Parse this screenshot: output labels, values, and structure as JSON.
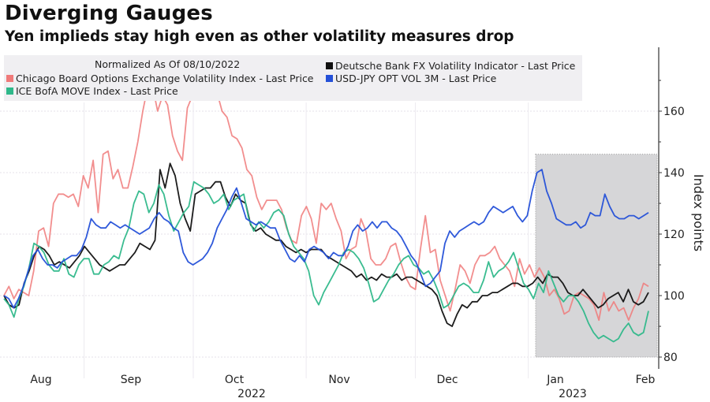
{
  "header": {
    "title": "Diverging Gauges",
    "subtitle": "Yen implieds stay high even as other volatility measures drop"
  },
  "legend": {
    "title": "Normalized As Of 08/10/2022",
    "items": [
      {
        "label": "Chicago Board Options Exchange Volatility Index - Last Price",
        "color": "#f07a7a"
      },
      {
        "label": "Deutsche Bank FX Volatility Indicator - Last Price",
        "color": "#111111"
      },
      {
        "label": "ICE BofA MOVE Index - Last Price",
        "color": "#2fb88a"
      },
      {
        "label": "USD-JPY OPT VOL 3M - Last Price",
        "color": "#2450d8"
      }
    ]
  },
  "chart_data": {
    "type": "line",
    "title": "Diverging Gauges",
    "subtitle": "Yen implieds stay high even as other volatility measures drop",
    "xlabel": "",
    "ylabel": "Index points",
    "ylim": [
      78,
      178
    ],
    "yticks": [
      80,
      100,
      120,
      140,
      160
    ],
    "xlim": [
      "2022-08-10",
      "2023-02-03"
    ],
    "xtick_labels": [
      "Aug",
      "Sep",
      "Oct",
      "Nov",
      "Dec",
      "Jan",
      "Feb"
    ],
    "year_labels": [
      {
        "label": "2022",
        "under": "Oct"
      },
      {
        "label": "2023",
        "under": "Jan"
      }
    ],
    "grid": true,
    "y_axis_side": "right",
    "shaded_region": {
      "start": "2023-01-03",
      "end": "2023-02-03",
      "ymin": 80,
      "ymax": 146
    },
    "x_fraction_note": "series values are sampled at evenly spaced trading days from start to end",
    "series": [
      {
        "name": "Chicago Board Options Exchange Volatility Index - Last Price",
        "color": "#f07a7a",
        "values": [
          100,
          103,
          99,
          102,
          101,
          100,
          108,
          121,
          122,
          116,
          130,
          133,
          133,
          132,
          133,
          129,
          139,
          135,
          144,
          127,
          146,
          147,
          138,
          141,
          135,
          135,
          142,
          150,
          160,
          168,
          168,
          160,
          165,
          162,
          152,
          147,
          144,
          161,
          165,
          170,
          176,
          174,
          166,
          166,
          160,
          158,
          152,
          151,
          148,
          141,
          139,
          132,
          128,
          131,
          131,
          131,
          128,
          122,
          118,
          117,
          126,
          129,
          125,
          117,
          130,
          128,
          130,
          125,
          121,
          112,
          115,
          116,
          125,
          121,
          112,
          110,
          110,
          112,
          116,
          117,
          111,
          106,
          103,
          102,
          115,
          126,
          114,
          115,
          105,
          100,
          95,
          102,
          110,
          108,
          104,
          110,
          113,
          113,
          114,
          116,
          112,
          110,
          108,
          103,
          112,
          107,
          110,
          106,
          109,
          106,
          100,
          102,
          99,
          94,
          95,
          100,
          101,
          100,
          99,
          97,
          92,
          101,
          95,
          98,
          95,
          96,
          92,
          96,
          99,
          104,
          103
        ],
        "last": 103
      },
      {
        "name": "Deutsche Bank FX Volatility Indicator - Last Price",
        "color": "#111111",
        "values": [
          100,
          97,
          96,
          97,
          104,
          108,
          113,
          116,
          115,
          113,
          110,
          111,
          110,
          109,
          111,
          113,
          116,
          114,
          112,
          110,
          109,
          108,
          109,
          110,
          110,
          112,
          114,
          117,
          116,
          115,
          118,
          141,
          135,
          143,
          139,
          130,
          125,
          121,
          133,
          134,
          135,
          135,
          137,
          137,
          132,
          129,
          133,
          131,
          130,
          123,
          121,
          122,
          120,
          119,
          118,
          118,
          116,
          115,
          114,
          115,
          114,
          115,
          115,
          115,
          113,
          112,
          111,
          110,
          109,
          108,
          106,
          107,
          105,
          106,
          105,
          107,
          106,
          106,
          107,
          105,
          106,
          106,
          105,
          104,
          103,
          102,
          100,
          95,
          91,
          90,
          94,
          97,
          96,
          98,
          98,
          100,
          100,
          101,
          101,
          102,
          103,
          104,
          104,
          103,
          103,
          104,
          106,
          104,
          107,
          106,
          106,
          104,
          101,
          100,
          100,
          102,
          100,
          98,
          96,
          97,
          99,
          100,
          101,
          98,
          102,
          98,
          97,
          98,
          101
        ],
        "last": 100
      },
      {
        "name": "ICE BofA MOVE Index - Last Price",
        "color": "#2fb88a",
        "values": [
          99,
          97,
          93,
          99,
          103,
          109,
          117,
          116,
          114,
          110,
          108,
          108,
          112,
          107,
          106,
          110,
          112,
          112,
          107,
          107,
          110,
          111,
          113,
          112,
          118,
          122,
          130,
          134,
          133,
          127,
          130,
          136,
          133,
          126,
          121,
          124,
          127,
          129,
          137,
          136,
          135,
          133,
          130,
          131,
          133,
          128,
          131,
          132,
          133,
          125,
          121,
          124,
          122,
          124,
          127,
          128,
          126,
          120,
          116,
          114,
          112,
          108,
          100,
          97,
          101,
          104,
          107,
          110,
          114,
          115,
          114,
          112,
          109,
          104,
          98,
          99,
          102,
          105,
          107,
          110,
          112,
          113,
          110,
          109,
          107,
          108,
          105,
          101,
          96,
          97,
          100,
          103,
          104,
          103,
          101,
          101,
          105,
          111,
          106,
          108,
          109,
          111,
          114,
          109,
          104,
          102,
          99,
          104,
          101,
          108,
          104,
          100,
          98,
          100,
          100,
          98,
          95,
          91,
          88,
          86,
          87,
          86,
          85,
          86,
          89,
          91,
          88,
          87,
          88,
          95
        ],
        "last": 95
      },
      {
        "name": "USD-JPY OPT VOL 3M - Last Price",
        "color": "#2450d8",
        "values": [
          100,
          99,
          96,
          99,
          103,
          108,
          113,
          115,
          112,
          110,
          110,
          109,
          111,
          112,
          113,
          113,
          115,
          119,
          125,
          123,
          122,
          122,
          124,
          123,
          122,
          123,
          122,
          121,
          120,
          121,
          122,
          125,
          127,
          125,
          124,
          122,
          121,
          114,
          111,
          110,
          111,
          112,
          114,
          117,
          122,
          125,
          128,
          132,
          135,
          130,
          125,
          124,
          123,
          124,
          123,
          122,
          122,
          118,
          115,
          112,
          111,
          113,
          111,
          115,
          116,
          115,
          114,
          112,
          114,
          113,
          113,
          116,
          121,
          123,
          121,
          122,
          124,
          122,
          124,
          124,
          122,
          121,
          119,
          116,
          113,
          111,
          107,
          103,
          104,
          106,
          108,
          117,
          121,
          119,
          121,
          122,
          123,
          124,
          123,
          124,
          127,
          129,
          128,
          127,
          128,
          129,
          126,
          124,
          126,
          134,
          140,
          141,
          134,
          130,
          125,
          124,
          123,
          123,
          124,
          122,
          123,
          127,
          126,
          126,
          133,
          129,
          126,
          125,
          125,
          126,
          126,
          125,
          126,
          127
        ],
        "last": 127
      }
    ]
  }
}
